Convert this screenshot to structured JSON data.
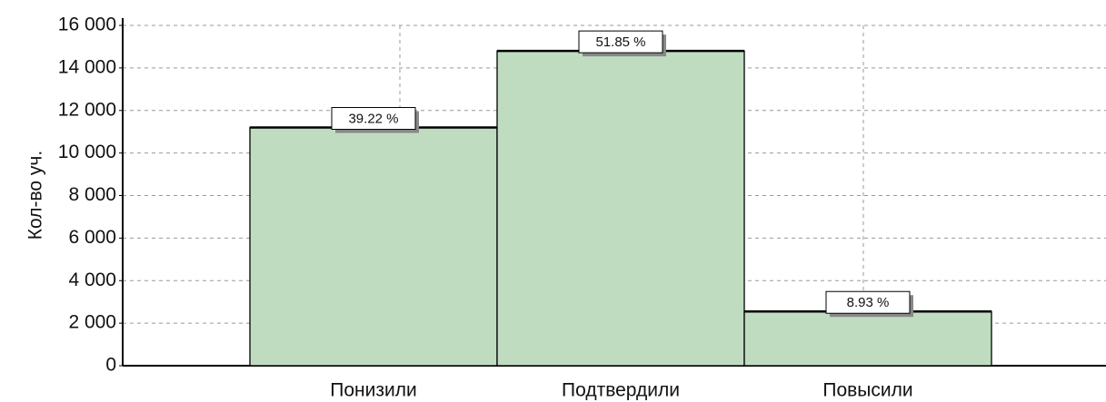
{
  "chart_data": {
    "type": "bar",
    "y_label": "Кол-во уч.",
    "categories": [
      "Понизили",
      "Подтвердили",
      "Повысили"
    ],
    "values": [
      11200,
      14800,
      2550
    ],
    "percent_labels": [
      "39.22 %",
      "51.85 %",
      "8.93 %"
    ],
    "color": "#c0dcc0",
    "ylim": [
      0,
      16000
    ],
    "yticks": [
      0,
      {
        "value": 2000,
        "label": "2 000"
      },
      {
        "value": 4000,
        "label": "4 000"
      },
      {
        "value": 6000,
        "label": "6 000"
      },
      {
        "value": 8000,
        "label": "8 000"
      },
      {
        "value": 10000,
        "label": "10 000"
      },
      {
        "value": 12000,
        "label": "12 000"
      },
      {
        "value": 14000,
        "label": "14 000"
      },
      {
        "value": 16000,
        "label": "16 000"
      }
    ],
    "grid": true
  }
}
